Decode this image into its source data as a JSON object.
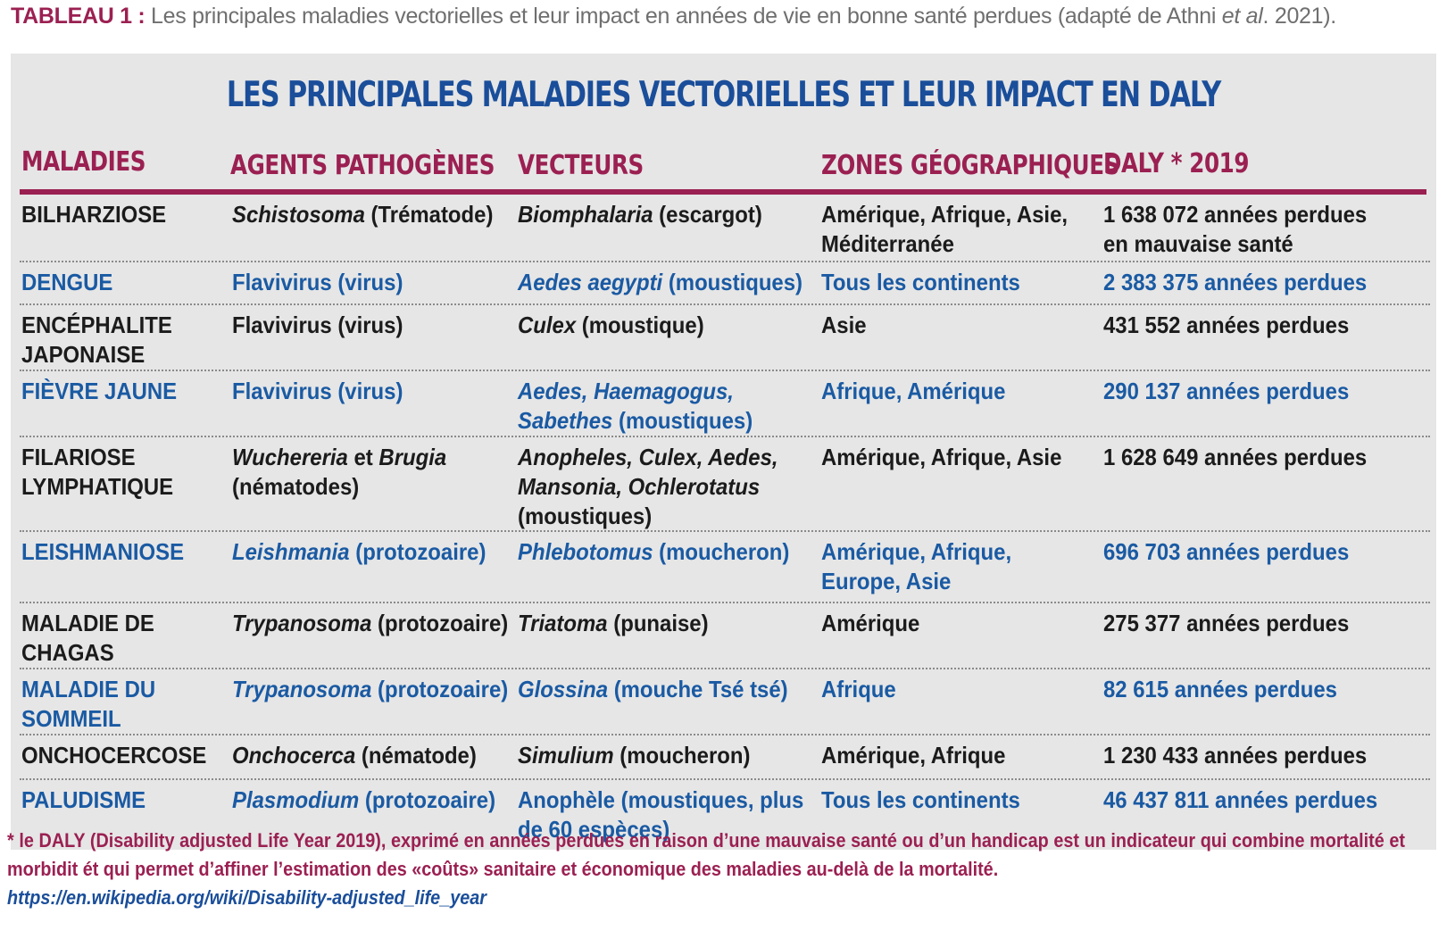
{
  "caption": {
    "label": "TABLEAU 1 :",
    "text_before": " Les principales maladies vectorielles et leur impact en années de vie en bonne santé perdues (adapté de Athni ",
    "italic": "et al",
    "text_after": ". 2021)."
  },
  "table": {
    "title": "LES PRINCIPALES MALADIES VECTORIELLES ET LEUR IMPACT EN DALY",
    "headers": [
      "MALADIES",
      "AGENTS PATHOGÈNES",
      "VECTEURS",
      "ZONES GÉOGRAPHIQUES",
      "DALY * 2019"
    ],
    "rows": [
      {
        "maladie": [
          "BILHARZIOSE"
        ],
        "agent": {
          "italic": "Schistosoma",
          "rest": " (Trématode)"
        },
        "vecteur": [
          {
            "italic": "Biomphalaria",
            "rest": " (escargot)"
          }
        ],
        "zones": [
          "Amérique, Afrique, Asie,",
          "Méditerranée"
        ],
        "daly": [
          "1 638 072 années perdues",
          "en mauvaise santé"
        ]
      },
      {
        "maladie": [
          "DENGUE"
        ],
        "agent": {
          "italic": "",
          "rest": "Flavivirus (virus)"
        },
        "vecteur": [
          {
            "italic": "Aedes aegypti",
            "rest": " (moustiques)"
          }
        ],
        "zones": [
          "Tous les continents"
        ],
        "daly": [
          "2 383 375 années perdues"
        ]
      },
      {
        "maladie": [
          "ENCÉPHALITE",
          "JAPONAISE"
        ],
        "agent": {
          "italic": "",
          "rest": "Flavivirus (virus)"
        },
        "vecteur": [
          {
            "italic": "Culex",
            "rest": " (moustique)"
          }
        ],
        "zones": [
          "Asie"
        ],
        "daly": [
          "431 552 années perdues"
        ]
      },
      {
        "maladie": [
          "FIÈVRE JAUNE"
        ],
        "agent": {
          "italic": "",
          "rest": "Flavivirus (virus)"
        },
        "vecteur": [
          {
            "italic": "Aedes, Haemagogus,",
            "rest": ""
          },
          {
            "italic": "Sabethes",
            "rest": " (moustiques)"
          }
        ],
        "zones": [
          "Afrique, Amérique"
        ],
        "daly": [
          "290 137 années perdues"
        ]
      },
      {
        "maladie": [
          "FILARIOSE",
          "LYMPHATIQUE"
        ],
        "agent_lines": [
          {
            "italic": "Wuchereria",
            "mid": " et ",
            "italic2": "Brugia"
          },
          {
            "text": "(nématodes)"
          }
        ],
        "vecteur": [
          {
            "italic": "Anopheles, Culex, Aedes,",
            "rest": ""
          },
          {
            "italic": "Mansonia, Ochlerotatus",
            "rest": ""
          },
          {
            "italic": "",
            "rest": "(moustiques)"
          }
        ],
        "zones": [
          "Amérique, Afrique, Asie"
        ],
        "daly": [
          "1 628 649 années perdues"
        ]
      },
      {
        "maladie": [
          "LEISHMANIOSE"
        ],
        "agent": {
          "italic": "Leishmania",
          "rest": " (protozoaire)"
        },
        "vecteur": [
          {
            "italic": "Phlebotomus",
            "rest": " (moucheron)"
          }
        ],
        "zones": [
          "Amérique, Afrique,",
          "Europe, Asie"
        ],
        "daly": [
          "696 703 années perdues"
        ]
      },
      {
        "maladie": [
          "MALADIE DE",
          "CHAGAS"
        ],
        "agent": {
          "italic": "Trypanosoma",
          "rest": " (protozoaire)"
        },
        "vecteur": [
          {
            "italic": "Triatoma",
            "rest": " (punaise)"
          }
        ],
        "zones": [
          "Amérique"
        ],
        "daly": [
          "275 377 années perdues"
        ]
      },
      {
        "maladie": [
          "MALADIE DU",
          "SOMMEIL"
        ],
        "agent": {
          "italic": "Trypanosoma",
          "rest": " (protozoaire)"
        },
        "vecteur": [
          {
            "italic": "Glossina",
            "rest": " (mouche Tsé tsé)"
          }
        ],
        "zones": [
          "Afrique"
        ],
        "daly": [
          "82 615 années perdues"
        ]
      },
      {
        "maladie": [
          "ONCHOCERCOSE"
        ],
        "agent": {
          "italic": "Onchocerca",
          "rest": " (nématode)"
        },
        "vecteur": [
          {
            "italic": "Simulium",
            "rest": " (moucheron)"
          }
        ],
        "zones": [
          "Amérique, Afrique"
        ],
        "daly": [
          "1 230 433 années perdues"
        ]
      },
      {
        "maladie": [
          "PALUDISME"
        ],
        "agent": {
          "italic": "Plasmodium",
          "rest": " (protozoaire)"
        },
        "vecteur": [
          {
            "italic": "",
            "rest": "Anophèle (moustiques, plus"
          },
          {
            "italic": "",
            "rest": "de 60 espèces)"
          }
        ],
        "zones": [
          "Tous les continents"
        ],
        "daly": [
          "46 437 811 années perdues"
        ]
      }
    ]
  },
  "footnote": {
    "text": "* le DALY (Disability adjusted Life Year 2019), exprimé en années perdues en raison d’une mauvaise santé ou d’un handicap est un indicateur qui combine mortalité et morbidit ét qui permet d’affiner l’estimation des «coûts» sanitaire et économique des maladies au-delà de la mortalité.",
    "link": "https://en.wikipedia.org/wiki/Disability-adjusted_life_year"
  },
  "colors": {
    "accent": "#9b2052",
    "blue": "#1a5aa3",
    "panel_bg": "#e6e6e6",
    "caption_gray": "#6f6f6f"
  }
}
